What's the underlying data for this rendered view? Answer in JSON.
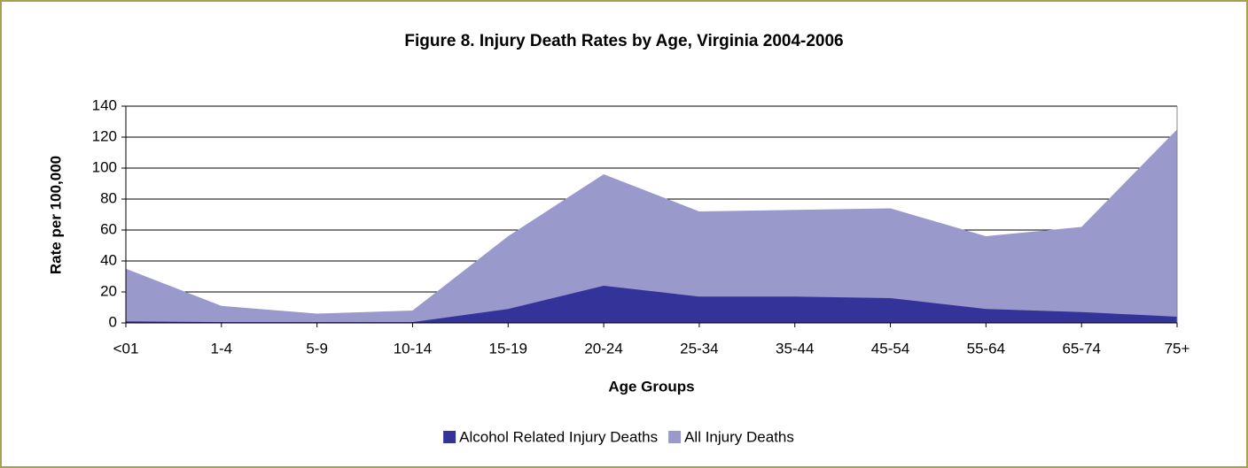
{
  "chart_data": {
    "type": "area",
    "title": "Figure 8. Injury Death Rates by Age, Virginia 2004-2006",
    "x_label": "Age Groups",
    "y_label": "Rate per 100,000",
    "categories": [
      "<01",
      "1-4",
      "5-9",
      "10-14",
      "15-19",
      "20-24",
      "25-34",
      "35-44",
      "45-54",
      "55-64",
      "65-74",
      "75+"
    ],
    "series": [
      {
        "name": "Alcohol Related Injury Deaths",
        "color": "#333399",
        "values": [
          1,
          0.5,
          0.5,
          0.5,
          9,
          24,
          17,
          17,
          16,
          9,
          7,
          4
        ]
      },
      {
        "name": "All Injury Deaths",
        "color": "#9999cc",
        "values": [
          35,
          11,
          6,
          8,
          56,
          96,
          72,
          73,
          74,
          56,
          62,
          125
        ]
      }
    ],
    "ylim": [
      0,
      140
    ],
    "yticks": [
      0,
      20,
      40,
      60,
      80,
      100,
      120,
      140
    ],
    "grid": true,
    "legend": "bottom"
  }
}
